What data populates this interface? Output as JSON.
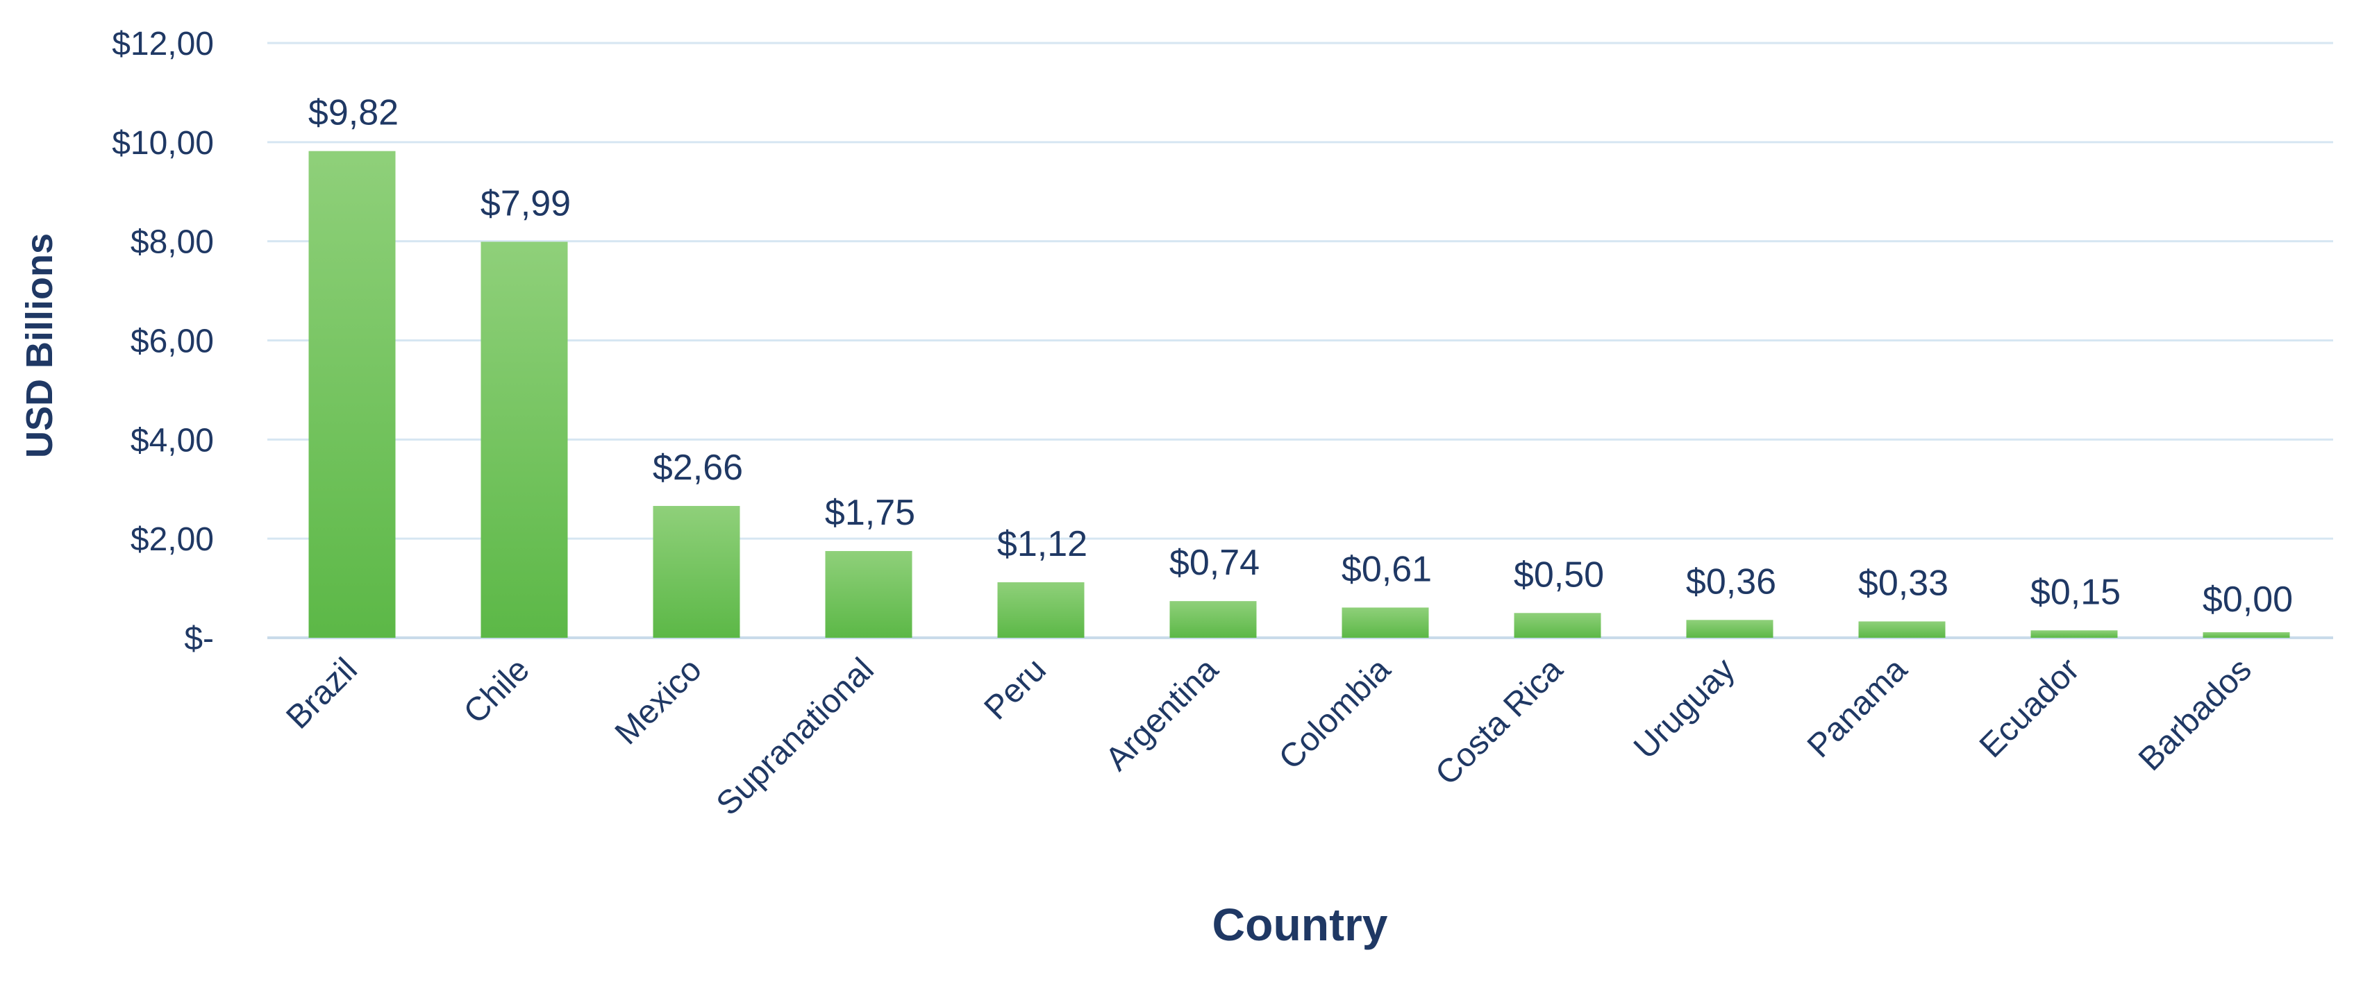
{
  "chart_data": {
    "type": "bar",
    "title": "",
    "xlabel": "Country",
    "ylabel": "USD Billions",
    "categories": [
      "Brazil",
      "Chile",
      "Mexico",
      "Supranational",
      "Peru",
      "Argentina",
      "Colombia",
      "Costa Rica",
      "Uruguay",
      "Panama",
      "Ecuador",
      "Barbados"
    ],
    "values": [
      9.82,
      7.99,
      2.66,
      1.75,
      1.12,
      0.74,
      0.61,
      0.5,
      0.36,
      0.33,
      0.15,
      0.0
    ],
    "data_labels": [
      "$9,82",
      "$7,99",
      "$2,66",
      "$1,75",
      "$1,12",
      "$0,74",
      "$0,61",
      "$0,50",
      "$0,36",
      "$0,33",
      "$0,15",
      "$0,00"
    ],
    "ylim": [
      0,
      12
    ],
    "y_ticks": [
      0,
      2,
      4,
      6,
      8,
      10,
      12
    ],
    "y_tick_labels": [
      "$-",
      "$2,00",
      "$4,00",
      "$6,00",
      "$8,00",
      "$10,00",
      "$12,00"
    ],
    "grid": true,
    "legend": "none",
    "colors": {
      "bar_top": "#8fd07a",
      "bar_bottom": "#5cb847",
      "text": "#1f3864",
      "grid": "#d6e6f2"
    }
  }
}
